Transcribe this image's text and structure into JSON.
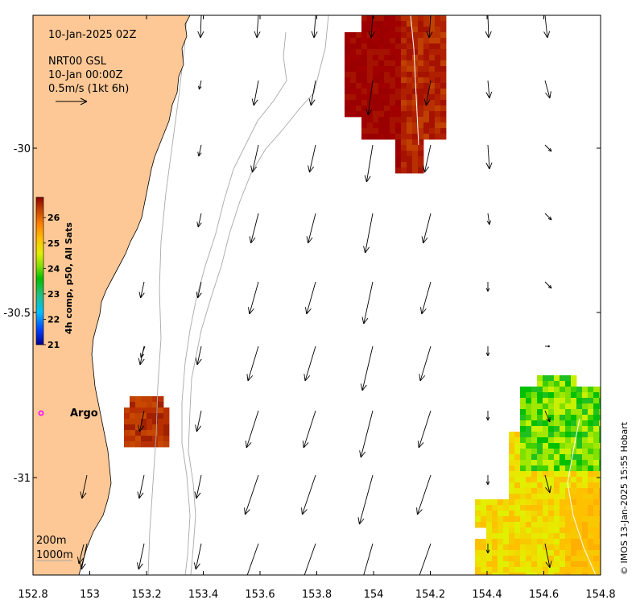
{
  "map": {
    "timestamp_label": "10-Jan-2025 02Z",
    "product_label": "NRT00 GSL",
    "product_time": "10-Jan 00:00Z",
    "vector_scale_label": "0.5m/s (1kt 6h)",
    "argo_label": "Argo",
    "depth_contours": [
      "200m",
      "1000m"
    ],
    "credit": "© IMOS 13-Jan-2025 15:55 Hobart",
    "colors": {
      "land": "#fdc896",
      "ocean": "#ffffff",
      "argo_marker": "#ff00ff",
      "vectors": "#000000",
      "contour_200m": "#9a9a9a",
      "contour_1000m": "#9a9a9a"
    }
  },
  "axes": {
    "x_ticks": [
      "152.8",
      "153",
      "153.2",
      "153.4",
      "153.6",
      "153.8",
      "154",
      "154.2",
      "154.4",
      "154.6",
      "154.8"
    ],
    "y_ticks": [
      "-30",
      "-30.5",
      "-31"
    ]
  },
  "colorbar": {
    "label": "4h comp, p50, All Sats",
    "ticks": [
      "21",
      "22",
      "23",
      "24",
      "25",
      "26"
    ],
    "range": [
      21,
      26.8
    ],
    "colors": [
      "#00008f",
      "#0040ff",
      "#00c0ff",
      "#20c080",
      "#00c000",
      "#80e000",
      "#e0f000",
      "#ffc000",
      "#ff8000",
      "#c04000",
      "#8b0000"
    ]
  }
}
